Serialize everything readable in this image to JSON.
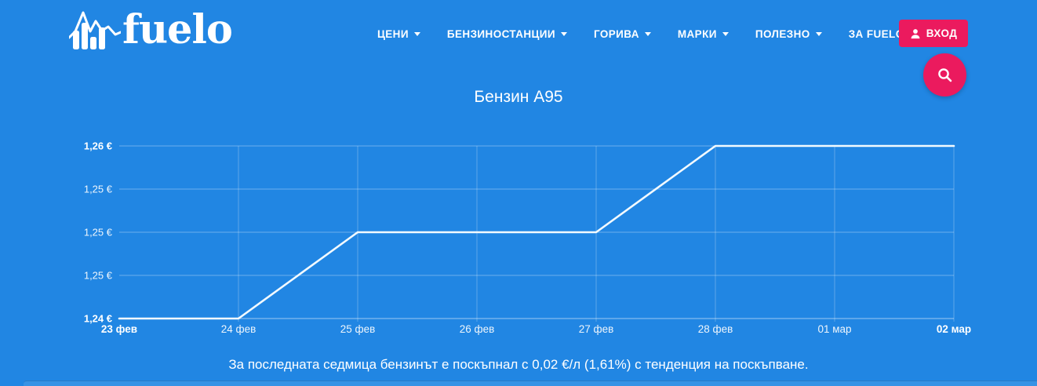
{
  "theme": {
    "background": "#2186E3",
    "accent_pink": "#EB1A5E",
    "text_color": "#FFFFFF",
    "line_color": "#F2FAFF"
  },
  "header": {
    "logo_text": "fuelo",
    "nav": [
      {
        "label": "ЦЕНИ"
      },
      {
        "label": "БЕНЗИНОСТАНЦИИ"
      },
      {
        "label": "ГОРИВА"
      },
      {
        "label": "МАРКИ"
      },
      {
        "label": "ПОЛЕЗНО"
      },
      {
        "label": "ЗА FUELO"
      }
    ],
    "login_label": "ВХОД"
  },
  "chart_data": {
    "type": "line",
    "title": "Бензин А95",
    "x": [
      "23 фев",
      "24 фев",
      "25 фев",
      "26 фев",
      "27 фев",
      "28 фев",
      "01 мар",
      "02 мар"
    ],
    "series": [
      {
        "name": "Бензин А95",
        "values": [
          1.24,
          1.24,
          1.25,
          1.25,
          1.25,
          1.26,
          1.26,
          1.26
        ]
      }
    ],
    "ylim": [
      1.24,
      1.26
    ],
    "y_ticks": [
      {
        "value": 1.24,
        "label": "1,24 €",
        "bold": true
      },
      {
        "value": 1.245,
        "label": "1,25 €",
        "bold": false
      },
      {
        "value": 1.25,
        "label": "1,25 €",
        "bold": false
      },
      {
        "value": 1.255,
        "label": "1,25 €",
        "bold": false
      },
      {
        "value": 1.26,
        "label": "1,26 €",
        "bold": true
      }
    ],
    "bold_x_indices": [
      0,
      7
    ],
    "xlabel": "",
    "ylabel": "",
    "grid": true,
    "legend": false
  },
  "summary": "За последната седмица бензинът е поскъпнал с 0,02 €/л (1,61%) с тенденция на поскъпване."
}
